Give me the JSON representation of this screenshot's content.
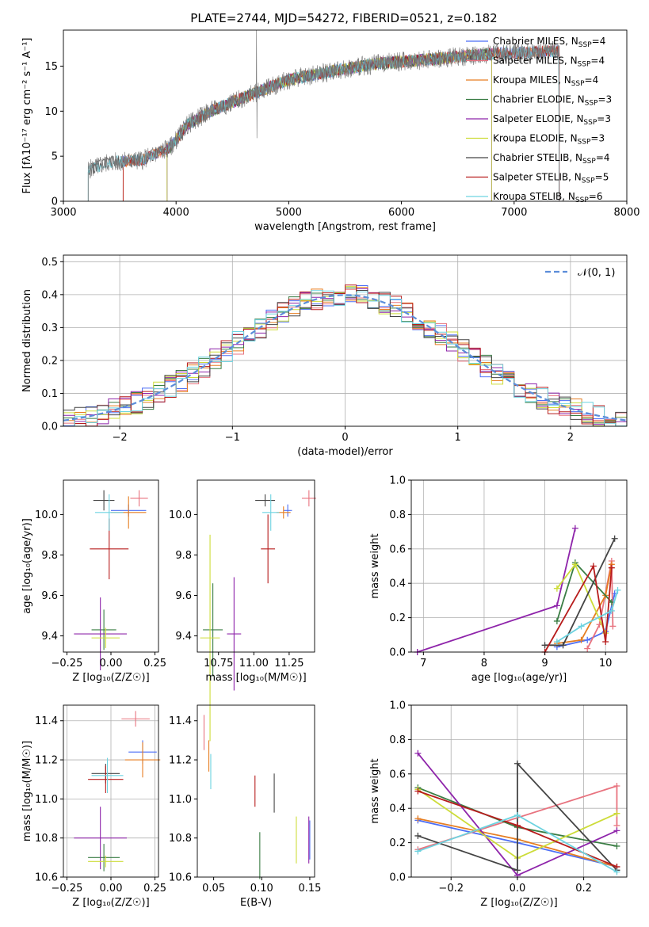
{
  "figure_title": "PLATE=2744, MJD=54272, FIBERID=0521, z=0.182",
  "models": [
    {
      "name": "Chabrier MILES",
      "nssp": "4",
      "color": "#4c6ef5"
    },
    {
      "name": "Salpeter MILES",
      "nssp": "4",
      "color": "#e8737f"
    },
    {
      "name": "Kroupa MILES",
      "nssp": "4",
      "color": "#e67e22"
    },
    {
      "name": "Chabrier ELODIE",
      "nssp": "3",
      "color": "#3a7d44"
    },
    {
      "name": "Salpeter ELODIE",
      "nssp": "3",
      "color": "#8e24aa"
    },
    {
      "name": "Kroupa ELODIE",
      "nssp": "3",
      "color": "#cddc39"
    },
    {
      "name": "Chabrier STELIB",
      "nssp": "4",
      "color": "#444444"
    },
    {
      "name": "Salpeter STELIB",
      "nssp": "5",
      "color": "#b71c1c"
    },
    {
      "name": "Kroupa STELIB",
      "nssp": "6",
      "color": "#6dd3e0"
    }
  ],
  "nssp_prefix": "N",
  "nssp_sub": "SSP",
  "nssp_eq": "=",
  "chart_data": [
    {
      "type": "line",
      "id": "spectrum",
      "xlabel": "wavelength [Angstrom, rest frame]",
      "ylabel": "Flux [fλ10⁻¹⁷ erg cm⁻² s⁻¹ A⁻¹]",
      "xlim": [
        3000,
        8000
      ],
      "ylim": [
        0,
        19
      ],
      "xticks": [
        3000,
        4000,
        5000,
        6000,
        7000,
        8000
      ],
      "yticks": [
        0,
        5,
        10,
        15
      ],
      "continuum": {
        "x": [
          3220,
          3400,
          3700,
          3950,
          4100,
          4300,
          4600,
          5000,
          5400,
          5800,
          6300,
          6800,
          7400
        ],
        "y": [
          3.5,
          4.3,
          4.6,
          6.0,
          8.5,
          10.0,
          11.5,
          13.5,
          14.5,
          15.3,
          15.8,
          16.4,
          16.7
        ]
      },
      "data_range": [
        3220,
        7400
      ],
      "model_ranges": {
        "Salpeter MILES": [
          3530,
          7400
        ],
        "Kroupa MILES": [
          3530,
          7400
        ],
        "Kroupa ELODIE": [
          3920,
          6800
        ],
        "Chabrier ELODIE": [
          3920,
          6800
        ],
        "Salpeter ELODIE": [
          3920,
          6800
        ],
        "Chabrier MILES": [
          3530,
          7400
        ],
        "Chabrier STELIB": [
          3220,
          7400
        ],
        "Salpeter STELIB": [
          3530,
          7400
        ],
        "Kroupa STELIB": [
          3220,
          7400
        ]
      },
      "grid": false,
      "legend": "upper right"
    },
    {
      "type": "bar",
      "id": "residual-histogram",
      "xlabel": "(data-model)/error",
      "ylabel": "Normed distribution",
      "xlim": [
        -2.5,
        2.5
      ],
      "ylim": [
        0,
        0.52
      ],
      "xticks": [
        -2,
        -1,
        0,
        1,
        2
      ],
      "yticks": [
        0,
        0.1,
        0.2,
        0.3,
        0.4,
        0.5
      ],
      "bin_width": 0.1,
      "bin_start": -2.5,
      "gaussian_label": "𝒩(0, 1)",
      "gaussian_color": "#5b8dd9",
      "grid": true,
      "legend": "upper right"
    },
    {
      "type": "scatter",
      "id": "age-vs-z",
      "xlabel": "Z [log₁₀(Z/Z☉)]",
      "ylabel": "age  [log₁₀(age/yr)]",
      "xlim": [
        -0.27,
        0.27
      ],
      "ylim": [
        9.32,
        10.17
      ],
      "xticks": [
        -0.25,
        0.0,
        0.25
      ],
      "yticks": [
        9.4,
        9.6,
        9.8,
        10.0
      ],
      "points": [
        {
          "model": "Chabrier MILES",
          "x": 0.1,
          "y": 10.02,
          "xerr": 0.1,
          "yerr": 0.03
        },
        {
          "model": "Salpeter MILES",
          "x": 0.16,
          "y": 10.08,
          "xerr": 0.05,
          "yerr": 0.04
        },
        {
          "model": "Kroupa MILES",
          "x": 0.1,
          "y": 10.01,
          "xerr": 0.1,
          "yerr": 0.08
        },
        {
          "model": "Chabrier ELODIE",
          "x": -0.04,
          "y": 9.43,
          "xerr": 0.07,
          "yerr": 0.1
        },
        {
          "model": "Salpeter ELODIE",
          "x": -0.06,
          "y": 9.41,
          "xerr": 0.15,
          "yerr": 0.18
        },
        {
          "model": "Kroupa ELODIE",
          "x": -0.03,
          "y": 9.39,
          "xerr": 0.08,
          "yerr": 0.05
        },
        {
          "model": "Chabrier STELIB",
          "x": -0.04,
          "y": 10.07,
          "xerr": 0.06,
          "yerr": 0.05
        },
        {
          "model": "Salpeter STELIB",
          "x": -0.01,
          "y": 9.83,
          "xerr": 0.11,
          "yerr": 0.15
        },
        {
          "model": "Kroupa STELIB",
          "x": -0.01,
          "y": 10.01,
          "xerr": 0.08,
          "yerr": 0.09
        }
      ],
      "grid": false
    },
    {
      "type": "scatter",
      "id": "age-vs-mass",
      "xlabel": "mass [log₁₀(M/M☉)]",
      "ylabel": "",
      "xlim": [
        10.6,
        11.43
      ],
      "ylim": [
        9.32,
        10.17
      ],
      "xticks": [
        10.75,
        11.0,
        11.25
      ],
      "yticks": [
        9.4,
        9.6,
        9.8,
        10.0
      ],
      "points": [
        {
          "model": "Chabrier MILES",
          "x": 11.24,
          "y": 10.02,
          "xerr": 0.03,
          "yerr": 0.03
        },
        {
          "model": "Salpeter MILES",
          "x": 11.39,
          "y": 10.08,
          "xerr": 0.05,
          "yerr": 0.04
        },
        {
          "model": "Kroupa MILES",
          "x": 11.21,
          "y": 10.01,
          "xerr": 0.05,
          "yerr": 0.03
        },
        {
          "model": "Chabrier ELODIE",
          "x": 10.71,
          "y": 9.43,
          "xerr": 0.07,
          "yerr": 0.23
        },
        {
          "model": "Salpeter ELODIE",
          "x": 10.86,
          "y": 9.41,
          "xerr": 0.05,
          "yerr": 0.28
        },
        {
          "model": "Kroupa ELODIE",
          "x": 10.69,
          "y": 9.39,
          "xerr": 0.07,
          "yerr": 0.51
        },
        {
          "model": "Chabrier STELIB",
          "x": 11.08,
          "y": 10.07,
          "xerr": 0.07,
          "yerr": 0.03
        },
        {
          "model": "Salpeter STELIB",
          "x": 11.1,
          "y": 9.83,
          "xerr": 0.05,
          "yerr": 0.17
        },
        {
          "model": "Kroupa STELIB",
          "x": 11.12,
          "y": 10.01,
          "xerr": 0.06,
          "yerr": 0.09
        }
      ],
      "grid": false
    },
    {
      "type": "line",
      "id": "weight-vs-age",
      "xlabel": "age  [log₁₀(age/yr)]",
      "ylabel": "mass weight",
      "xlim": [
        6.8,
        10.35
      ],
      "ylim": [
        0,
        1.0
      ],
      "xticks": [
        7,
        8,
        9,
        10
      ],
      "yticks": [
        0.0,
        0.2,
        0.4,
        0.6,
        0.8,
        1.0
      ],
      "series": [
        {
          "model": "Chabrier MILES",
          "x": [
            9.2,
            9.7,
            10.0,
            10.15
          ],
          "y": [
            0.03,
            0.07,
            0.12,
            0.34
          ]
        },
        {
          "model": "Salpeter MILES",
          "x": [
            9.7,
            9.9,
            10.1,
            10.12
          ],
          "y": [
            0.02,
            0.16,
            0.53,
            0.15
          ]
        },
        {
          "model": "Kroupa MILES",
          "x": [
            9.2,
            9.6,
            10.0,
            10.1
          ],
          "y": [
            0.05,
            0.07,
            0.33,
            0.51
          ]
        },
        {
          "model": "Chabrier ELODIE",
          "x": [
            9.2,
            9.5,
            10.1
          ],
          "y": [
            0.18,
            0.52,
            0.29
          ]
        },
        {
          "model": "Salpeter ELODIE",
          "x": [
            6.9,
            9.2,
            9.5
          ],
          "y": [
            0.0,
            0.27,
            0.72
          ]
        },
        {
          "model": "Kroupa ELODIE",
          "x": [
            9.2,
            9.5,
            10.0
          ],
          "y": [
            0.37,
            0.51,
            0.11
          ]
        },
        {
          "model": "Chabrier STELIB",
          "x": [
            9.0,
            9.3,
            10.15
          ],
          "y": [
            0.04,
            0.04,
            0.66
          ]
        },
        {
          "model": "Salpeter STELIB",
          "x": [
            9.0,
            9.8,
            10.0,
            10.1
          ],
          "y": [
            0.0,
            0.5,
            0.06,
            0.49
          ]
        },
        {
          "model": "Kroupa STELIB",
          "x": [
            9.2,
            9.6,
            10.1,
            10.2
          ],
          "y": [
            0.06,
            0.15,
            0.24,
            0.36
          ]
        }
      ],
      "grid": true
    },
    {
      "type": "scatter",
      "id": "mass-vs-z",
      "xlabel": "Z [log₁₀(Z/Z☉)]",
      "ylabel": "mass [log₁₀(M/M☉)]",
      "xlim": [
        -0.27,
        0.27
      ],
      "ylim": [
        10.6,
        11.48
      ],
      "xticks": [
        -0.25,
        0.0,
        0.25
      ],
      "yticks": [
        10.6,
        10.8,
        11.0,
        11.2,
        11.4
      ],
      "points": [
        {
          "model": "Chabrier MILES",
          "x": 0.18,
          "y": 11.24,
          "xerr": 0.08,
          "yerr": 0.06
        },
        {
          "model": "Salpeter MILES",
          "x": 0.14,
          "y": 11.41,
          "xerr": 0.08,
          "yerr": 0.04
        },
        {
          "model": "Kroupa MILES",
          "x": 0.18,
          "y": 11.2,
          "xerr": 0.1,
          "yerr": 0.09
        },
        {
          "model": "Chabrier ELODIE",
          "x": -0.04,
          "y": 10.7,
          "xerr": 0.09,
          "yerr": 0.07
        },
        {
          "model": "Salpeter ELODIE",
          "x": -0.06,
          "y": 10.8,
          "xerr": 0.15,
          "yerr": 0.16
        },
        {
          "model": "Kroupa ELODIE",
          "x": -0.03,
          "y": 10.68,
          "xerr": 0.1,
          "yerr": 0.03
        },
        {
          "model": "Chabrier STELIB",
          "x": -0.03,
          "y": 11.13,
          "xerr": 0.08,
          "yerr": 0.05
        },
        {
          "model": "Salpeter STELIB",
          "x": -0.03,
          "y": 11.1,
          "xerr": 0.1,
          "yerr": 0.07
        },
        {
          "model": "Kroupa STELIB",
          "x": -0.02,
          "y": 11.12,
          "xerr": 0.09,
          "yerr": 0.09
        }
      ],
      "grid": true
    },
    {
      "type": "scatter",
      "id": "mass-vs-ebv",
      "xlabel": "E(B-V)",
      "ylabel": "",
      "xlim": [
        0.033,
        0.155
      ],
      "ylim": [
        10.6,
        11.48
      ],
      "xticks": [
        0.05,
        0.1,
        0.15
      ],
      "yticks": [
        10.6,
        10.8,
        11.0,
        11.2,
        11.4
      ],
      "points": [
        {
          "model": "Chabrier MILES",
          "x": 0.15,
          "y": 10.79,
          "xerr": 0,
          "yerr": 0.1
        },
        {
          "model": "Salpeter MILES",
          "x": 0.04,
          "y": 11.34,
          "xerr": 0,
          "yerr": 0.09
        },
        {
          "model": "Kroupa MILES",
          "x": 0.045,
          "y": 11.22,
          "xerr": 0,
          "yerr": 0.08
        },
        {
          "model": "Chabrier ELODIE",
          "x": 0.098,
          "y": 10.71,
          "xerr": 0,
          "yerr": 0.12
        },
        {
          "model": "Salpeter ELODIE",
          "x": 0.149,
          "y": 10.79,
          "xerr": 0,
          "yerr": 0.12
        },
        {
          "model": "Kroupa ELODIE",
          "x": 0.136,
          "y": 10.79,
          "xerr": 0,
          "yerr": 0.12
        },
        {
          "model": "Chabrier STELIB",
          "x": 0.113,
          "y": 11.03,
          "xerr": 0,
          "yerr": 0.1
        },
        {
          "model": "Salpeter STELIB",
          "x": 0.093,
          "y": 11.04,
          "xerr": 0,
          "yerr": 0.08
        },
        {
          "model": "Kroupa STELIB",
          "x": 0.047,
          "y": 11.14,
          "xerr": 0,
          "yerr": 0.09
        }
      ],
      "grid": false
    },
    {
      "type": "line",
      "id": "weight-vs-z",
      "xlabel": "Z [log₁₀(Z/Z☉)]",
      "ylabel": "mass weight",
      "xlim": [
        -0.32,
        0.33
      ],
      "ylim": [
        0,
        1.0
      ],
      "xticks": [
        -0.2,
        0.0,
        0.2
      ],
      "yticks": [
        0.0,
        0.2,
        0.4,
        0.6,
        0.8,
        1.0
      ],
      "series": [
        {
          "model": "Chabrier MILES",
          "x": [
            -0.3,
            0.0,
            0.3
          ],
          "y": [
            0.33,
            0.2,
            0.06
          ]
        },
        {
          "model": "Salpeter MILES",
          "x": [
            -0.3,
            0.3,
            0.3
          ],
          "y": [
            0.16,
            0.53,
            0.3
          ]
        },
        {
          "model": "Kroupa MILES",
          "x": [
            -0.3,
            0.0,
            0.3
          ],
          "y": [
            0.34,
            0.22,
            0.06
          ]
        },
        {
          "model": "Chabrier ELODIE",
          "x": [
            -0.3,
            0.0,
            0.3
          ],
          "y": [
            0.52,
            0.29,
            0.18
          ]
        },
        {
          "model": "Salpeter ELODIE",
          "x": [
            -0.3,
            0.0,
            0.3
          ],
          "y": [
            0.72,
            0.01,
            0.27
          ]
        },
        {
          "model": "Kroupa ELODIE",
          "x": [
            -0.3,
            0.0,
            0.3
          ],
          "y": [
            0.51,
            0.11,
            0.37
          ]
        },
        {
          "model": "Chabrier STELIB",
          "x": [
            -0.3,
            0.0,
            0.0,
            0.3
          ],
          "y": [
            0.24,
            0.04,
            0.66,
            0.04
          ]
        },
        {
          "model": "Salpeter STELIB",
          "x": [
            -0.3,
            0.0,
            0.3
          ],
          "y": [
            0.5,
            0.3,
            0.06
          ]
        },
        {
          "model": "Kroupa STELIB",
          "x": [
            -0.3,
            0.0,
            0.3
          ],
          "y": [
            0.15,
            0.36,
            0.03
          ]
        }
      ],
      "grid": true
    }
  ]
}
